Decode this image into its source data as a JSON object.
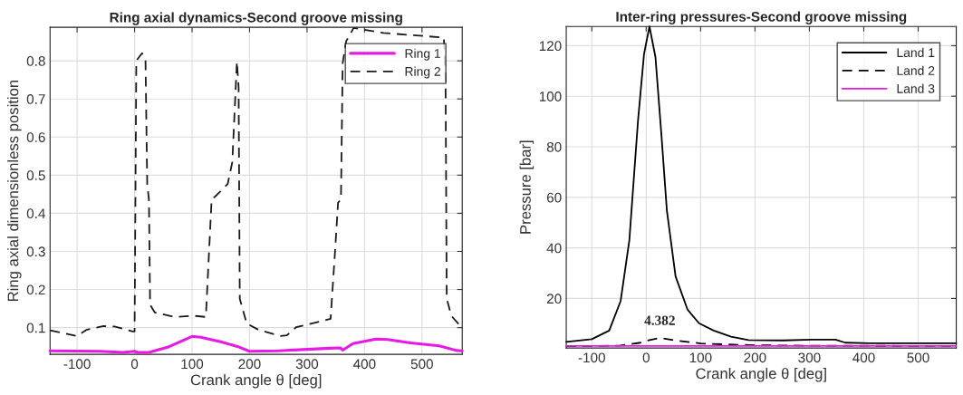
{
  "chart_data": [
    {
      "type": "line",
      "title": "Ring axial dynamics-Second groove missing",
      "xlabel": "Crank angle θ [deg]",
      "ylabel": "Ring axial dimensionless position",
      "xlim": [
        -147,
        570
      ],
      "ylim": [
        0.03,
        0.888
      ],
      "xticks": [
        -100,
        0,
        100,
        200,
        300,
        400,
        500
      ],
      "yticks": [
        0.1,
        0.2,
        0.3,
        0.4,
        0.5,
        0.6,
        0.7,
        0.8
      ],
      "grid": true,
      "legend": "top right",
      "marker": "none",
      "series": [
        {
          "name": "Ring 1",
          "color": "#e619e6",
          "line_style": "solid",
          "x": [
            -147,
            -60,
            -20,
            0,
            5,
            25,
            60,
            100,
            115,
            150,
            180,
            200,
            250,
            300,
            340,
            358,
            362,
            380,
            420,
            440,
            480,
            530,
            560,
            570
          ],
          "values": [
            0.039,
            0.038,
            0.035,
            0.038,
            0.035,
            0.035,
            0.05,
            0.077,
            0.075,
            0.063,
            0.05,
            0.038,
            0.039,
            0.043,
            0.046,
            0.047,
            0.041,
            0.058,
            0.07,
            0.069,
            0.06,
            0.052,
            0.04,
            0.039
          ]
        },
        {
          "name": "Ring 2",
          "color": "#1a1a1a",
          "line_style": "dashed",
          "x": [
            -147,
            -100,
            -84,
            -54,
            -35,
            -3,
            0,
            3,
            13,
            19,
            22,
            25,
            27,
            35,
            70,
            103,
            124,
            134,
            143,
            162,
            170,
            178,
            181,
            183,
            195,
            216,
            254,
            265,
            281,
            308,
            341,
            349,
            354,
            359,
            362,
            368,
            381,
            433,
            538,
            541,
            543,
            551,
            568
          ],
          "values": [
            0.093,
            0.078,
            0.094,
            0.104,
            0.103,
            0.09,
            0.09,
            0.8,
            0.82,
            0.8,
            0.477,
            0.435,
            0.16,
            0.14,
            0.128,
            0.131,
            0.128,
            0.436,
            0.448,
            0.477,
            0.534,
            0.798,
            0.73,
            0.176,
            0.111,
            0.094,
            0.078,
            0.08,
            0.101,
            0.111,
            0.123,
            0.306,
            0.428,
            0.436,
            0.794,
            0.851,
            0.886,
            0.873,
            0.861,
            0.754,
            0.176,
            0.131,
            0.102
          ]
        }
      ]
    },
    {
      "type": "line",
      "title": "Inter-ring pressures-Second groove missing",
      "xlabel": "Crank angle θ [deg]",
      "ylabel": "Pressure [bar]",
      "xlim": [
        -147,
        570
      ],
      "ylim": [
        0.4,
        127.6
      ],
      "xticks": [
        -100,
        0,
        100,
        200,
        300,
        400,
        500
      ],
      "yticks": [
        20,
        40,
        60,
        80,
        100,
        120
      ],
      "grid": true,
      "legend": "top right",
      "marker": "none",
      "annotations": [
        {
          "text": "4.382",
          "x": 25,
          "y": 4.382
        }
      ],
      "series": [
        {
          "name": "Land 1",
          "color": "#000000",
          "line_style": "solid",
          "x": [
            -147,
            -100,
            -68,
            -47,
            -31,
            -15,
            -4,
            6,
            17,
            28,
            38,
            54,
            76,
            97,
            124,
            156,
            188,
            252,
            305,
            348,
            366,
            412,
            570
          ],
          "values": [
            2.8,
            3.9,
            7.3,
            19,
            43,
            90.5,
            116.7,
            127.6,
            115.5,
            84.6,
            54.8,
            28.7,
            15.6,
            10.2,
            7.3,
            4.9,
            3.5,
            3.4,
            3.7,
            3.7,
            2.5,
            2.3,
            2.3
          ]
        },
        {
          "name": "Land 2",
          "color": "#000000",
          "line_style": "dashed",
          "x": [
            -147,
            -50,
            -10,
            0,
            25,
            50,
            100,
            150,
            200,
            300,
            570
          ],
          "values": [
            1.1,
            1.3,
            2.5,
            3.2,
            4.382,
            3.5,
            2.2,
            1.8,
            1.5,
            1.3,
            1.2
          ]
        },
        {
          "name": "Land 3",
          "color": "#e619e6",
          "line_style": "solid",
          "x": [
            -147,
            0,
            200,
            400,
            570
          ],
          "values": [
            1.2,
            1.2,
            1.2,
            1.2,
            1.2
          ]
        }
      ]
    }
  ]
}
